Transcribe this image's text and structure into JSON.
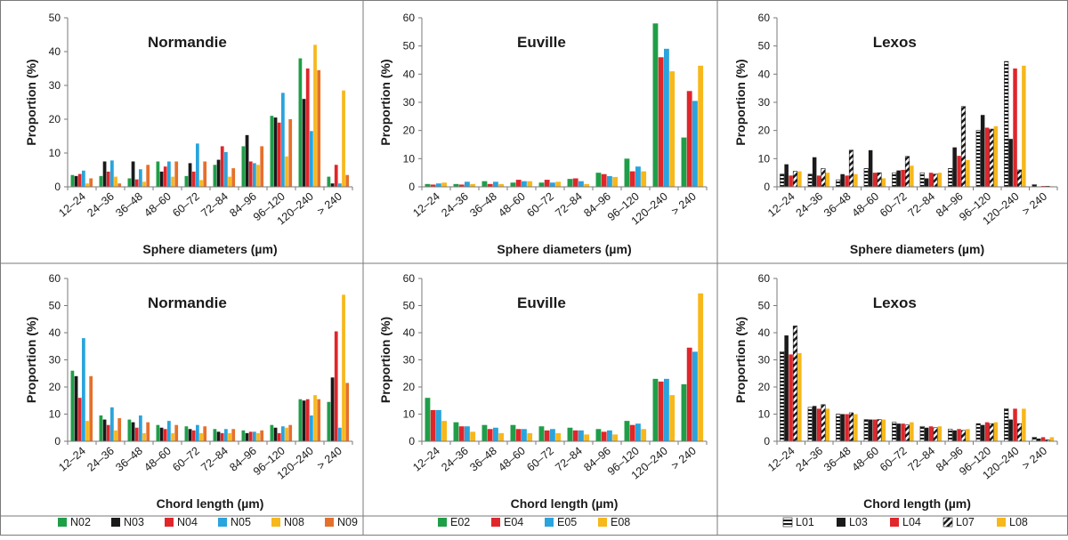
{
  "colors": {
    "green": "#1f9e48",
    "black": "#1a1a1a",
    "red": "#e0262b",
    "blue": "#2aa4dc",
    "yellow": "#f7b81c",
    "orange": "#e5702b",
    "white": "#ffffff"
  },
  "legends": [
    {
      "items": [
        {
          "label": "N02",
          "color": "#1f9e48",
          "pattern": "solid"
        },
        {
          "label": "N03",
          "color": "#1a1a1a",
          "pattern": "solid"
        },
        {
          "label": "N04",
          "color": "#e0262b",
          "pattern": "solid"
        },
        {
          "label": "N05",
          "color": "#2aa4dc",
          "pattern": "solid"
        },
        {
          "label": "N08",
          "color": "#f7b81c",
          "pattern": "solid"
        },
        {
          "label": "N09",
          "color": "#e5702b",
          "pattern": "solid"
        }
      ]
    },
    {
      "items": [
        {
          "label": "E02",
          "color": "#1f9e48",
          "pattern": "solid"
        },
        {
          "label": "E04",
          "color": "#e0262b",
          "pattern": "solid"
        },
        {
          "label": "E05",
          "color": "#2aa4dc",
          "pattern": "solid"
        },
        {
          "label": "E08",
          "color": "#f7b81c",
          "pattern": "solid"
        }
      ]
    },
    {
      "items": [
        {
          "label": "L01",
          "color": "#1a1a1a",
          "pattern": "hstripe"
        },
        {
          "label": "L03",
          "color": "#1a1a1a",
          "pattern": "solid"
        },
        {
          "label": "L04",
          "color": "#e0262b",
          "pattern": "solid"
        },
        {
          "label": "L07",
          "color": "#1a1a1a",
          "pattern": "dstripe"
        },
        {
          "label": "L08",
          "color": "#f7b81c",
          "pattern": "solid"
        }
      ]
    }
  ],
  "chart_data": [
    {
      "type": "bar",
      "title": "Normandie",
      "xlabel": "Sphere diameters (µm)",
      "ylabel": "Proportion (%)",
      "ylim": [
        0,
        50
      ],
      "yticks": [
        0,
        10,
        20,
        30,
        40,
        50
      ],
      "grid": false,
      "categories": [
        "12–24",
        "24–36",
        "36–48",
        "48–60",
        "60–72",
        "72–84",
        "84–96",
        "96–120",
        "120–240",
        "> 240"
      ],
      "series": [
        {
          "name": "N02",
          "color": "#1f9e48",
          "pattern": "solid",
          "values": [
            3.5,
            3.2,
            2.5,
            7.5,
            3.2,
            6.5,
            12,
            21,
            38,
            3
          ]
        },
        {
          "name": "N03",
          "color": "#1a1a1a",
          "pattern": "solid",
          "values": [
            3.2,
            7.5,
            7.5,
            4.5,
            7,
            8,
            15.3,
            20.5,
            26,
            1
          ]
        },
        {
          "name": "N04",
          "color": "#e0262b",
          "pattern": "solid",
          "values": [
            3.8,
            4.5,
            2.2,
            6,
            4.5,
            12,
            7.5,
            19,
            35,
            6.5
          ]
        },
        {
          "name": "N05",
          "color": "#2aa4dc",
          "pattern": "solid",
          "values": [
            4.8,
            7.8,
            5.2,
            7.5,
            12.8,
            10.3,
            7,
            27.8,
            16.5,
            1
          ]
        },
        {
          "name": "N08",
          "color": "#f7b81c",
          "pattern": "solid",
          "values": [
            1,
            3,
            1.5,
            3,
            2,
            3,
            6.5,
            9,
            42,
            28.5
          ]
        },
        {
          "name": "N09",
          "color": "#e5702b",
          "pattern": "solid",
          "values": [
            2.5,
            1,
            6.5,
            7.5,
            7.5,
            5.5,
            12,
            20,
            34.5,
            3.5
          ]
        }
      ]
    },
    {
      "type": "bar",
      "title": "Euville",
      "xlabel": "Sphere diameters (µm)",
      "ylabel": "Proportion (%)",
      "ylim": [
        0,
        60
      ],
      "yticks": [
        0,
        10,
        20,
        30,
        40,
        50,
        60
      ],
      "grid": false,
      "categories": [
        "12–24",
        "24–36",
        "36–48",
        "48–60",
        "60–72",
        "72–84",
        "84–96",
        "96–120",
        "120–240",
        "> 240"
      ],
      "series": [
        {
          "name": "E02",
          "color": "#1f9e48",
          "pattern": "solid",
          "values": [
            1,
            1,
            2,
            1.5,
            1.5,
            2.8,
            5,
            10,
            58,
            17.5
          ]
        },
        {
          "name": "E04",
          "color": "#e0262b",
          "pattern": "solid",
          "values": [
            0.8,
            0.8,
            1,
            2.5,
            2.5,
            3,
            4.5,
            5.5,
            46,
            34
          ]
        },
        {
          "name": "E05",
          "color": "#2aa4dc",
          "pattern": "solid",
          "values": [
            1.2,
            1.8,
            1.8,
            2,
            1.5,
            2,
            3.8,
            7.2,
            49,
            30.5
          ]
        },
        {
          "name": "E08",
          "color": "#f7b81c",
          "pattern": "solid",
          "values": [
            1.5,
            1,
            1,
            2,
            1.8,
            1,
            3.5,
            5.5,
            41,
            43
          ]
        }
      ]
    },
    {
      "type": "bar",
      "title": "Lexos",
      "xlabel": "Sphere diameters (µm)",
      "ylabel": "Proportion (%)",
      "ylim": [
        0,
        60
      ],
      "yticks": [
        0,
        10,
        20,
        30,
        40,
        50,
        60
      ],
      "grid": false,
      "categories": [
        "12–24",
        "24–36",
        "36–48",
        "48–60",
        "60–72",
        "72–84",
        "84–96",
        "96–120",
        "120–240",
        "> 240"
      ],
      "series": [
        {
          "name": "L01",
          "color": "#1a1a1a",
          "pattern": "hstripe",
          "values": [
            4.5,
            4.5,
            2.5,
            6.5,
            5,
            5,
            6.5,
            20,
            44.5,
            0.8
          ]
        },
        {
          "name": "L03",
          "color": "#1a1a1a",
          "pattern": "solid",
          "values": [
            8,
            10.5,
            4.5,
            13,
            5.8,
            3,
            14,
            25.5,
            17,
            0
          ]
        },
        {
          "name": "L04",
          "color": "#e0262b",
          "pattern": "solid",
          "values": [
            4,
            4,
            4,
            5,
            6,
            5,
            11,
            21,
            42,
            0.3
          ]
        },
        {
          "name": "L07",
          "color": "#1a1a1a",
          "pattern": "dstripe",
          "values": [
            5.5,
            6.5,
            13,
            5,
            10.8,
            4.5,
            28.5,
            20.5,
            6,
            0.2
          ]
        },
        {
          "name": "L08",
          "color": "#f7b81c",
          "pattern": "solid",
          "values": [
            5.5,
            5,
            4.5,
            3,
            7.5,
            5,
            9.5,
            21.5,
            43,
            0.2
          ]
        }
      ]
    },
    {
      "type": "bar",
      "title": "Normandie",
      "xlabel": "Chord length (µm)",
      "ylabel": "Proportion (%)",
      "ylim": [
        0,
        60
      ],
      "yticks": [
        0,
        10,
        20,
        30,
        40,
        50,
        60
      ],
      "grid": false,
      "categories": [
        "12–24",
        "24–36",
        "36–48",
        "48–60",
        "60–72",
        "72–84",
        "84–96",
        "96–120",
        "120–240",
        "> 240"
      ],
      "series": [
        {
          "name": "N02",
          "color": "#1f9e48",
          "pattern": "solid",
          "values": [
            26,
            9.5,
            8,
            6,
            5.5,
            4.5,
            4,
            6,
            15.5,
            14.5
          ]
        },
        {
          "name": "N03",
          "color": "#1a1a1a",
          "pattern": "solid",
          "values": [
            24,
            8,
            7,
            5,
            4.5,
            3.5,
            3,
            5,
            15,
            23.5
          ]
        },
        {
          "name": "N04",
          "color": "#e0262b",
          "pattern": "solid",
          "values": [
            16,
            6,
            5,
            4.5,
            4,
            3,
            3.5,
            3,
            15.5,
            40.5
          ]
        },
        {
          "name": "N05",
          "color": "#2aa4dc",
          "pattern": "solid",
          "values": [
            38,
            12.5,
            9.5,
            7.5,
            6,
            4.5,
            3.5,
            5.5,
            9.5,
            5
          ]
        },
        {
          "name": "N08",
          "color": "#f7b81c",
          "pattern": "solid",
          "values": [
            7.5,
            4,
            3,
            3,
            3,
            3,
            3,
            5,
            17,
            54
          ]
        },
        {
          "name": "N09",
          "color": "#e5702b",
          "pattern": "solid",
          "values": [
            24,
            8.5,
            7,
            6,
            5.5,
            4.5,
            4,
            6,
            15.5,
            21.5
          ]
        }
      ]
    },
    {
      "type": "bar",
      "title": "Euville",
      "xlabel": "Chord length (µm)",
      "ylabel": "Proportion (%)",
      "ylim": [
        0,
        60
      ],
      "yticks": [
        0,
        10,
        20,
        30,
        40,
        50,
        60
      ],
      "grid": false,
      "categories": [
        "12–24",
        "24–36",
        "36–48",
        "48–60",
        "60–72",
        "72–84",
        "84–96",
        "96–120",
        "120–240",
        "> 240"
      ],
      "series": [
        {
          "name": "E02",
          "color": "#1f9e48",
          "pattern": "solid",
          "values": [
            16,
            7,
            6,
            6,
            5.5,
            5,
            4.5,
            7.5,
            23,
            21
          ]
        },
        {
          "name": "E04",
          "color": "#e0262b",
          "pattern": "solid",
          "values": [
            11.5,
            5.5,
            4.5,
            4.5,
            4,
            4,
            3.5,
            6,
            22,
            34.5
          ]
        },
        {
          "name": "E05",
          "color": "#2aa4dc",
          "pattern": "solid",
          "values": [
            11.5,
            5.5,
            5,
            4.5,
            4.5,
            4,
            4,
            6.5,
            23,
            33
          ]
        },
        {
          "name": "E08",
          "color": "#f7b81c",
          "pattern": "solid",
          "values": [
            7.5,
            3.5,
            3,
            3,
            3,
            2.5,
            2.5,
            4.5,
            17,
            54.5
          ]
        }
      ]
    },
    {
      "type": "bar",
      "title": "Lexos",
      "xlabel": "Chord length (µm)",
      "ylabel": "Proportion (%)",
      "ylim": [
        0,
        60
      ],
      "yticks": [
        0,
        10,
        20,
        30,
        40,
        50,
        60
      ],
      "grid": false,
      "categories": [
        "12–24",
        "24–36",
        "36–48",
        "48–60",
        "60–72",
        "72–84",
        "84–96",
        "96–120",
        "120–240",
        "> 240"
      ],
      "series": [
        {
          "name": "L01",
          "color": "#1a1a1a",
          "pattern": "hstripe",
          "values": [
            33,
            12.5,
            10,
            8,
            7,
            5.5,
            4.5,
            6.5,
            12,
            1.5
          ]
        },
        {
          "name": "L03",
          "color": "#1a1a1a",
          "pattern": "solid",
          "values": [
            39,
            13,
            10,
            8,
            6.5,
            5,
            4,
            6,
            8,
            1
          ]
        },
        {
          "name": "L04",
          "color": "#e0262b",
          "pattern": "solid",
          "values": [
            32,
            12,
            10,
            8,
            6.5,
            5.5,
            4.5,
            7,
            12,
            1.5
          ]
        },
        {
          "name": "L07",
          "color": "#1a1a1a",
          "pattern": "dstripe",
          "values": [
            42.5,
            13.5,
            10.5,
            8,
            6,
            5,
            4,
            6.5,
            6.5,
            0.5
          ]
        },
        {
          "name": "L08",
          "color": "#f7b81c",
          "pattern": "solid",
          "values": [
            32.5,
            12,
            10,
            8,
            7,
            5.5,
            4.5,
            7,
            12,
            1.5
          ]
        }
      ]
    }
  ]
}
